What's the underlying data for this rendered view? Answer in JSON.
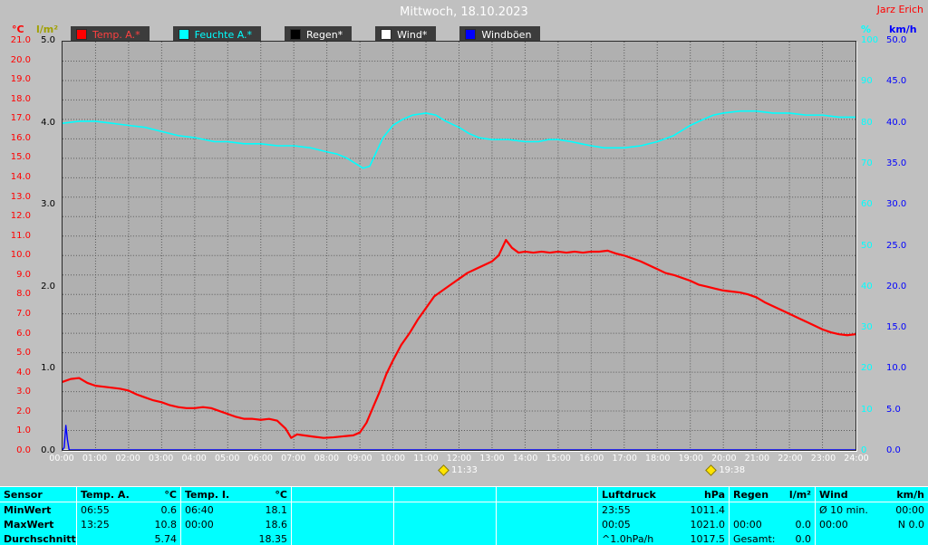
{
  "header": {
    "title": "Mittwoch, 18.10.2023",
    "station": "Jarz Erich"
  },
  "colors": {
    "window_bg": "#c0c0c0",
    "plot_bg": "#b0b0b0",
    "grid": "#5a5a5a",
    "temp": "#ff0000",
    "humidity": "#00ffff",
    "rain": "#000000",
    "wind": "#ffffff",
    "gusts": "#0000ff",
    "table_bg": "#00ffff",
    "title_text": "#ffffff",
    "station_text": "#ff0000",
    "marker": "#ffe400"
  },
  "legend": {
    "items": [
      {
        "key": "temp-a",
        "label": "Temp. A.*",
        "swatch": "#ff0000",
        "text_color": "#ff4040"
      },
      {
        "key": "feuchte-a",
        "label": "Feuchte A.*",
        "swatch": "#00ffff",
        "text_color": "#00ffff"
      },
      {
        "key": "regen",
        "label": "Regen*",
        "swatch": "#000000",
        "text_color": "#ffffff"
      },
      {
        "key": "wind",
        "label": "Wind*",
        "swatch": "#ffffff",
        "text_color": "#ffffff"
      },
      {
        "key": "windboeen",
        "label": "Windböen",
        "swatch": "#0000ff",
        "text_color": "#ffffff"
      }
    ]
  },
  "chart_data": {
    "type": "line",
    "title": "Mittwoch, 18.10.2023",
    "grid": {
      "color": "#5a5a5a",
      "x_divisions": 24,
      "y_divisions": 21
    },
    "x_axis": {
      "color": "#ffffff",
      "ticks": [
        "00:00",
        "01:00",
        "02:00",
        "03:00",
        "04:00",
        "05:00",
        "06:00",
        "07:00",
        "08:00",
        "09:00",
        "10:00",
        "11:00",
        "12:00",
        "13:00",
        "14:00",
        "15:00",
        "16:00",
        "17:00",
        "18:00",
        "19:00",
        "20:00",
        "21:00",
        "22:00",
        "23:00",
        "24:00"
      ]
    },
    "axes": {
      "temp": {
        "title": "°C",
        "color": "#ff0000",
        "min": 0,
        "max": 21,
        "ticks": [
          "21.0",
          "20.0",
          "19.0",
          "18.0",
          "17.0",
          "16.0",
          "15.0",
          "14.0",
          "13.0",
          "12.0",
          "11.0",
          "10.0",
          "9.0",
          "8.0",
          "7.0",
          "6.0",
          "5.0",
          "4.0",
          "3.0",
          "2.0",
          "1.0",
          "0.0"
        ]
      },
      "rain": {
        "title": "l/m²",
        "color": "#000000",
        "title_color": "#a0a000",
        "min": 0,
        "max": 5,
        "ticks": [
          "5.0",
          "4.0",
          "3.0",
          "2.0",
          "1.0",
          "0.0"
        ]
      },
      "humidity": {
        "title": "%",
        "color": "#00ffff",
        "min": 0,
        "max": 100,
        "ticks": [
          "100",
          "90",
          "80",
          "70",
          "60",
          "50",
          "40",
          "30",
          "20",
          "10",
          "0"
        ]
      },
      "wind": {
        "title": "km/h",
        "color": "#0000ff",
        "min": 0,
        "max": 50,
        "ticks": [
          "50.0",
          "45.0",
          "40.0",
          "35.0",
          "30.0",
          "25.0",
          "20.0",
          "15.0",
          "10.0",
          "5.0",
          "0.0"
        ]
      }
    },
    "series": [
      {
        "key": "regen",
        "name": "Regen*",
        "axis": "rain",
        "color": "#000000",
        "width": 1,
        "points": [
          [
            0,
            0
          ],
          [
            24,
            0
          ]
        ]
      },
      {
        "key": "wind",
        "name": "Wind*",
        "axis": "wind",
        "color": "#ffffff",
        "width": 1.2,
        "points": [
          [
            0,
            0
          ],
          [
            24,
            0
          ]
        ]
      },
      {
        "key": "windboeen",
        "name": "Windböen",
        "axis": "wind",
        "color": "#0000ff",
        "width": 1.4,
        "points": [
          [
            0,
            0
          ],
          [
            0.05,
            0.3
          ],
          [
            0.1,
            3
          ],
          [
            0.15,
            1.2
          ],
          [
            0.2,
            0
          ],
          [
            24,
            0
          ]
        ]
      },
      {
        "key": "feuchte-a",
        "name": "Feuchte A.*",
        "axis": "humidity",
        "color": "#00ffff",
        "width": 1.6,
        "points": [
          [
            0,
            80
          ],
          [
            0.5,
            80.5
          ],
          [
            1,
            80.5
          ],
          [
            1.5,
            80
          ],
          [
            2,
            79.5
          ],
          [
            2.5,
            79
          ],
          [
            3,
            78
          ],
          [
            3.5,
            77
          ],
          [
            4,
            76.5
          ],
          [
            4.3,
            76
          ],
          [
            4.6,
            75.5
          ],
          [
            5,
            75.5
          ],
          [
            5.5,
            75
          ],
          [
            6,
            75
          ],
          [
            6.5,
            74.5
          ],
          [
            7,
            74.5
          ],
          [
            7.5,
            74
          ],
          [
            8,
            73
          ],
          [
            8.3,
            72.5
          ],
          [
            8.6,
            71.5
          ],
          [
            8.9,
            70
          ],
          [
            9.1,
            69
          ],
          [
            9.3,
            69.5
          ],
          [
            9.5,
            73
          ],
          [
            9.7,
            76.5
          ],
          [
            10,
            79.5
          ],
          [
            10.3,
            81
          ],
          [
            10.6,
            82
          ],
          [
            11,
            82.5
          ],
          [
            11.3,
            82
          ],
          [
            11.6,
            80.5
          ],
          [
            12,
            79
          ],
          [
            12.3,
            77.5
          ],
          [
            12.6,
            76.5
          ],
          [
            13,
            76
          ],
          [
            13.5,
            76
          ],
          [
            14,
            75.5
          ],
          [
            14.4,
            75.5
          ],
          [
            14.7,
            76
          ],
          [
            15,
            76
          ],
          [
            15.4,
            75.5
          ],
          [
            15.7,
            75
          ],
          [
            16,
            74.5
          ],
          [
            16.4,
            74
          ],
          [
            17,
            74
          ],
          [
            17.5,
            74.5
          ],
          [
            18,
            75.5
          ],
          [
            18.5,
            77
          ],
          [
            19,
            79.5
          ],
          [
            19.4,
            81
          ],
          [
            19.7,
            82
          ],
          [
            20,
            82.5
          ],
          [
            20.5,
            83
          ],
          [
            21,
            83
          ],
          [
            21.5,
            82.5
          ],
          [
            22,
            82.5
          ],
          [
            22.5,
            82
          ],
          [
            23,
            82
          ],
          [
            23.5,
            81.5
          ],
          [
            24,
            81.5
          ]
        ]
      },
      {
        "key": "temp-a",
        "name": "Temp. A.*",
        "axis": "temp",
        "color": "#ff0000",
        "width": 2.2,
        "points": [
          [
            0,
            3.5
          ],
          [
            0.25,
            3.65
          ],
          [
            0.5,
            3.7
          ],
          [
            0.75,
            3.45
          ],
          [
            1,
            3.3
          ],
          [
            1.25,
            3.25
          ],
          [
            1.5,
            3.2
          ],
          [
            1.75,
            3.15
          ],
          [
            2,
            3.05
          ],
          [
            2.25,
            2.85
          ],
          [
            2.5,
            2.7
          ],
          [
            2.75,
            2.55
          ],
          [
            3,
            2.45
          ],
          [
            3.25,
            2.3
          ],
          [
            3.5,
            2.2
          ],
          [
            3.75,
            2.15
          ],
          [
            4,
            2.15
          ],
          [
            4.25,
            2.2
          ],
          [
            4.5,
            2.15
          ],
          [
            4.75,
            2.0
          ],
          [
            5,
            1.85
          ],
          [
            5.25,
            1.7
          ],
          [
            5.5,
            1.6
          ],
          [
            5.75,
            1.6
          ],
          [
            6,
            1.55
          ],
          [
            6.25,
            1.6
          ],
          [
            6.5,
            1.5
          ],
          [
            6.75,
            1.1
          ],
          [
            6.92,
            0.62
          ],
          [
            7.1,
            0.8
          ],
          [
            7.3,
            0.75
          ],
          [
            7.6,
            0.68
          ],
          [
            7.9,
            0.62
          ],
          [
            8.2,
            0.65
          ],
          [
            8.5,
            0.7
          ],
          [
            8.8,
            0.75
          ],
          [
            9,
            0.9
          ],
          [
            9.2,
            1.4
          ],
          [
            9.4,
            2.2
          ],
          [
            9.6,
            3.0
          ],
          [
            9.8,
            3.9
          ],
          [
            10,
            4.6
          ],
          [
            10.25,
            5.4
          ],
          [
            10.5,
            6.0
          ],
          [
            10.75,
            6.7
          ],
          [
            11,
            7.3
          ],
          [
            11.25,
            7.9
          ],
          [
            11.5,
            8.2
          ],
          [
            11.75,
            8.5
          ],
          [
            12,
            8.8
          ],
          [
            12.25,
            9.1
          ],
          [
            12.5,
            9.3
          ],
          [
            12.75,
            9.5
          ],
          [
            13,
            9.7
          ],
          [
            13.2,
            10.0
          ],
          [
            13.42,
            10.8
          ],
          [
            13.6,
            10.4
          ],
          [
            13.8,
            10.15
          ],
          [
            14,
            10.2
          ],
          [
            14.25,
            10.15
          ],
          [
            14.5,
            10.2
          ],
          [
            14.75,
            10.15
          ],
          [
            15,
            10.2
          ],
          [
            15.25,
            10.15
          ],
          [
            15.5,
            10.2
          ],
          [
            15.75,
            10.15
          ],
          [
            16,
            10.2
          ],
          [
            16.25,
            10.2
          ],
          [
            16.5,
            10.25
          ],
          [
            16.75,
            10.1
          ],
          [
            17,
            10.0
          ],
          [
            17.25,
            9.85
          ],
          [
            17.5,
            9.7
          ],
          [
            17.75,
            9.5
          ],
          [
            18,
            9.3
          ],
          [
            18.25,
            9.1
          ],
          [
            18.5,
            9.0
          ],
          [
            18.75,
            8.85
          ],
          [
            19,
            8.7
          ],
          [
            19.25,
            8.5
          ],
          [
            19.5,
            8.4
          ],
          [
            19.75,
            8.3
          ],
          [
            20,
            8.2
          ],
          [
            20.25,
            8.15
          ],
          [
            20.5,
            8.1
          ],
          [
            20.75,
            8.0
          ],
          [
            21,
            7.85
          ],
          [
            21.25,
            7.6
          ],
          [
            21.5,
            7.4
          ],
          [
            21.75,
            7.2
          ],
          [
            22,
            7.0
          ],
          [
            22.25,
            6.8
          ],
          [
            22.5,
            6.6
          ],
          [
            22.75,
            6.4
          ],
          [
            23,
            6.2
          ],
          [
            23.25,
            6.05
          ],
          [
            23.5,
            5.95
          ],
          [
            23.75,
            5.9
          ],
          [
            24,
            5.95
          ]
        ]
      }
    ],
    "markers": [
      {
        "time": "11:33",
        "hour": 11.55
      },
      {
        "time": "19:38",
        "hour": 19.63
      }
    ]
  },
  "table": {
    "sensor_col": [
      "Sensor",
      "MinWert",
      "MaxWert",
      "Durchschnitt"
    ],
    "temp_a": {
      "h1": "Temp. A.",
      "h2": "°C",
      "r1t": "06:55",
      "r1v": "0.6",
      "r2t": "13:25",
      "r2v": "10.8",
      "r3t": "",
      "r3v": "5.74"
    },
    "temp_i": {
      "h1": "Temp. I.",
      "h2": "°C",
      "r1t": "06:40",
      "r1v": "18.1",
      "r2t": "00:00",
      "r2v": "18.6",
      "r3t": "",
      "r3v": "18.35"
    },
    "luftdruck": {
      "h1": "Luftdruck",
      "h2": "hPa",
      "r1t": "23:55",
      "r1v": "1011.4",
      "r2t": "00:05",
      "r2v": "1021.0",
      "r3t": "^1.0hPa/h",
      "r3v": "1017.5"
    },
    "regen": {
      "h1": "Regen",
      "h2": "l/m²",
      "r1t": "",
      "r1v": "",
      "r2t": "00:00",
      "r2v": "0.0",
      "r3t": "Gesamt:",
      "r3v": "0.0"
    },
    "wind": {
      "h1": "Wind",
      "h2": "km/h",
      "r1t": "Ø 10 min.",
      "r1v": "00:00",
      "r2t": "00:00",
      "r2v": "N 0.0",
      "r3t": "",
      "r3v": ""
    }
  }
}
